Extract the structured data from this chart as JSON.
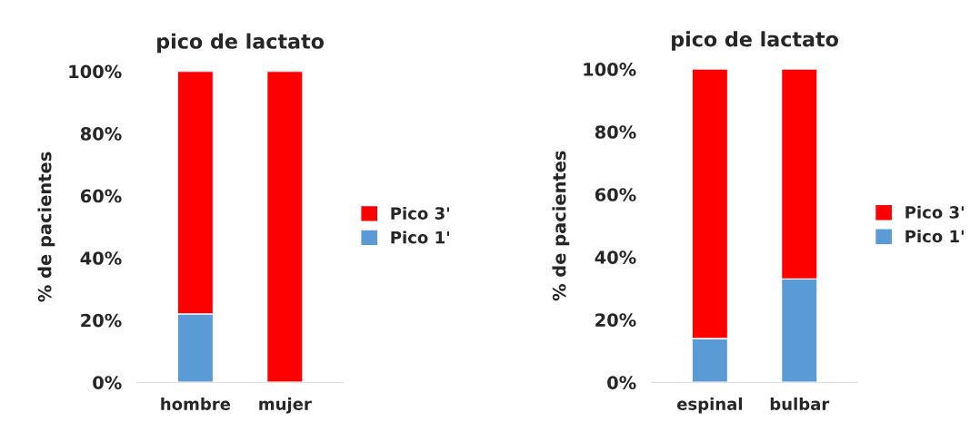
{
  "chart_data": [
    {
      "type": "bar",
      "title": "pico de lactato",
      "ylabel": "% de pacientes",
      "categories": [
        "hombre",
        "mujer"
      ],
      "stacked": true,
      "legend": "right",
      "grid": false,
      "ylim": [
        0,
        100
      ],
      "yticks": [
        {
          "value": 0,
          "label": "0%"
        },
        {
          "value": 20,
          "label": "20%"
        },
        {
          "value": 40,
          "label": "40%"
        },
        {
          "value": 60,
          "label": "60%"
        },
        {
          "value": 80,
          "label": "80%"
        },
        {
          "value": 100,
          "label": "100%"
        }
      ],
      "series": [
        {
          "name": "Pico 1'",
          "color": "#5b9bd5",
          "values": [
            22,
            0
          ]
        },
        {
          "name": "Pico 3'",
          "color": "#ff0000",
          "values": [
            78,
            100
          ]
        }
      ]
    },
    {
      "type": "bar",
      "title": "pico de lactato",
      "ylabel": "% de pacientes",
      "categories": [
        "espinal",
        "bulbar"
      ],
      "stacked": true,
      "legend": "right",
      "grid": false,
      "ylim": [
        0,
        100
      ],
      "yticks": [
        {
          "value": 0,
          "label": "0%"
        },
        {
          "value": 20,
          "label": "20%"
        },
        {
          "value": 40,
          "label": "40%"
        },
        {
          "value": 60,
          "label": "60%"
        },
        {
          "value": 80,
          "label": "80%"
        },
        {
          "value": 100,
          "label": "100%"
        }
      ],
      "series": [
        {
          "name": "Pico 1'",
          "color": "#5b9bd5",
          "values": [
            14,
            33
          ]
        },
        {
          "name": "Pico 3'",
          "color": "#ff0000",
          "values": [
            86,
            67
          ]
        }
      ]
    }
  ]
}
